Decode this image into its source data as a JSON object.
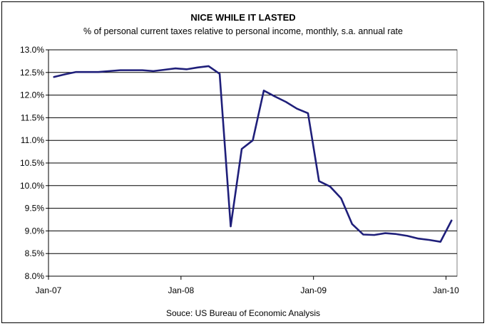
{
  "chart_data": {
    "type": "line",
    "title": "NICE WHILE IT LASTED",
    "subtitle": "% of personal current taxes relative to personal income, monthly, s.a. annual rate",
    "source": "Souce: US Bureau of Economic Analysis",
    "x_tick_labels": [
      "Jan-07",
      "Jan-08",
      "Jan-09",
      "Jan-10"
    ],
    "y_tick_labels": [
      "8.0%",
      "8.5%",
      "9.0%",
      "9.5%",
      "10.0%",
      "10.5%",
      "11.0%",
      "11.5%",
      "12.0%",
      "12.5%",
      "13.0%"
    ],
    "ylim": [
      8.0,
      13.0
    ],
    "grid": true,
    "series_color": "#1f1f7a",
    "x": [
      "2007-01",
      "2007-02",
      "2007-03",
      "2007-04",
      "2007-05",
      "2007-06",
      "2007-07",
      "2007-08",
      "2007-09",
      "2007-10",
      "2007-11",
      "2007-12",
      "2008-01",
      "2008-02",
      "2008-03",
      "2008-04",
      "2008-05",
      "2008-06",
      "2008-07",
      "2008-08",
      "2008-09",
      "2008-10",
      "2008-11",
      "2008-12",
      "2009-01",
      "2009-02",
      "2009-03",
      "2009-04",
      "2009-05",
      "2009-06",
      "2009-07",
      "2009-08",
      "2009-09",
      "2009-10",
      "2009-11",
      "2009-12",
      "2010-01"
    ],
    "series": [
      {
        "values": [
          12.4,
          12.46,
          12.51,
          12.51,
          12.51,
          12.53,
          12.55,
          12.55,
          12.55,
          12.53,
          12.56,
          12.59,
          12.57,
          12.61,
          12.64,
          12.47,
          9.1,
          10.81,
          11.0,
          12.1,
          11.97,
          11.85,
          11.7,
          11.6,
          10.1,
          9.98,
          9.72,
          9.15,
          8.92,
          8.91,
          8.95,
          8.93,
          8.89,
          8.83,
          8.8,
          8.76,
          9.23
        ]
      }
    ]
  }
}
